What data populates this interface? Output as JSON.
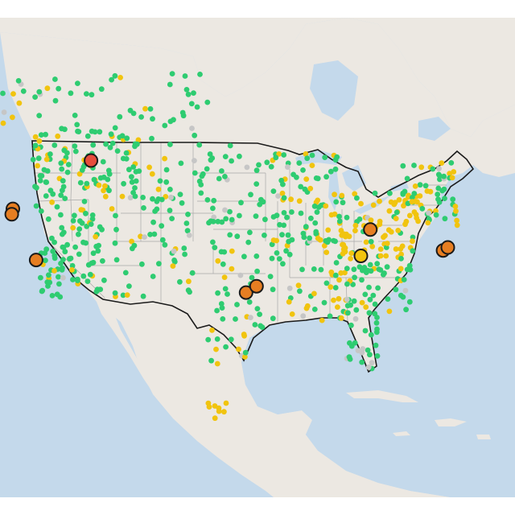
{
  "map": {
    "colors": {
      "water": "#c4d9eb",
      "land": "#ece8e2",
      "land_alt": "#e9e4dd",
      "usa_border": "#1a1a1a",
      "state_line": "#a8a8a8",
      "good": "#2ecc71",
      "moderate": "#f1c40f",
      "usg": "#e67e22",
      "unhealthy": "#e74c3c",
      "no_data": "#c6c6c6"
    },
    "legend": [],
    "monitors": {
      "description_levels": [
        "good",
        "moderate",
        "usg",
        "unhealthy",
        "no_data"
      ],
      "large_markers": [
        {
          "lon": -114.1,
          "lat": 48.2,
          "level": "unhealthy"
        },
        {
          "lon": -123.1,
          "lat": 44.0,
          "level": "usg"
        },
        {
          "lon": -123.3,
          "lat": 43.5,
          "level": "usg"
        },
        {
          "lon": -121.2,
          "lat": 39.1,
          "level": "usg"
        },
        {
          "lon": -97.5,
          "lat": 35.5,
          "level": "usg"
        },
        {
          "lon": -96.3,
          "lat": 36.1,
          "level": "usg"
        },
        {
          "lon": -83.6,
          "lat": 41.6,
          "level": "usg"
        },
        {
          "lon": -84.5,
          "lat": 39.1,
          "level": "moderate"
        },
        {
          "lon": -75.3,
          "lat": 39.9,
          "level": "usg"
        },
        {
          "lon": -74.8,
          "lat": 40.2,
          "level": "usg"
        }
      ]
    }
  }
}
